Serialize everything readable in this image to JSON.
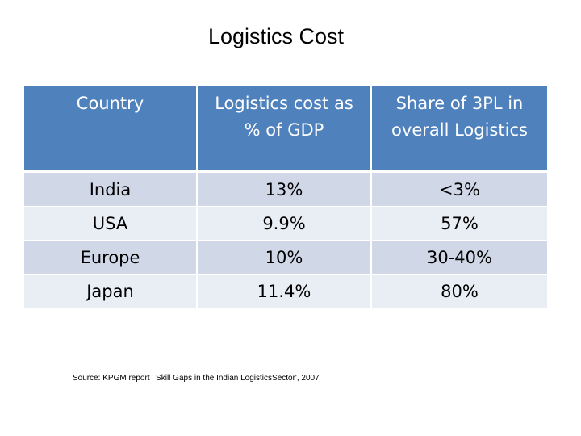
{
  "title": "Logistics Cost",
  "table": {
    "headers": [
      "Country",
      "Logistics cost as % of GDP",
      "Share of 3PL in overall Logistics"
    ],
    "rows": [
      [
        "India",
        "13%",
        "<3%"
      ],
      [
        "USA",
        "9.9%",
        "57%"
      ],
      [
        "Europe",
        "10%",
        "30-40%"
      ],
      [
        "Japan",
        "11.4%",
        "80%"
      ]
    ],
    "colors": {
      "header": "#4f81bd",
      "row_odd": "#d0d8e8",
      "row_even": "#e9edf4"
    }
  },
  "source": "Source: KPGM report ' Skill Gaps in the Indian LogisticsSector', 2007"
}
